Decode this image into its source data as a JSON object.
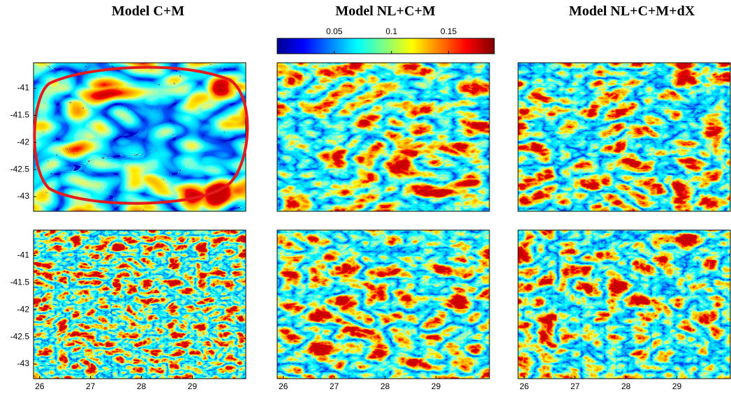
{
  "columns": [
    {
      "title": "Model C+M"
    },
    {
      "title": "Model NL+C+M"
    },
    {
      "title": "Model NL+C+M+dX"
    }
  ],
  "colorbar": {
    "range": [
      0,
      0.19
    ],
    "ticks": [
      0.05,
      0.1,
      0.15
    ]
  },
  "yaxis": {
    "lim": [
      -43.27,
      -40.53
    ],
    "ticks": [
      -41,
      -41.5,
      -42,
      -42.5,
      -43
    ]
  },
  "xaxis": {
    "lim": [
      25.88,
      30.05
    ],
    "ticks": [
      26,
      27,
      28,
      29
    ]
  }
}
